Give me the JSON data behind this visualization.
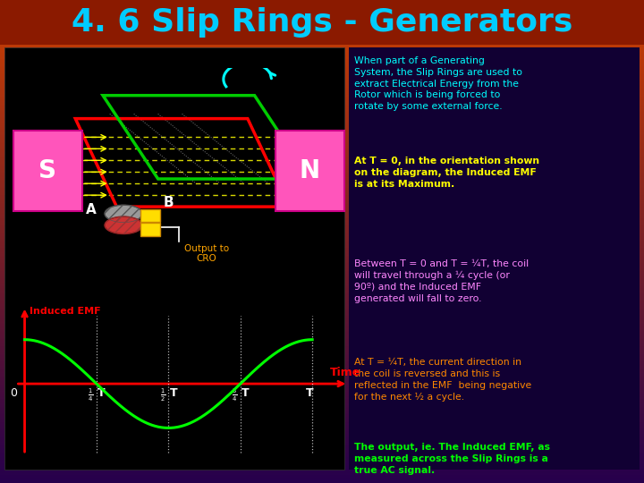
{
  "title": "4. 6 Slip Rings - Generators",
  "title_color": "#00CCFF",
  "title_fontsize": 26,
  "text_blocks": [
    {
      "text": "When part of a Generating\nSystem, the Slip Rings are used to\nextract Electrical Energy from the\nRotor which is being forced to\nrotate by some external force.",
      "color": "#00FFFF",
      "fontsize": 7.8,
      "bold": false
    },
    {
      "text": "At T = 0, in the orientation shown\non the diagram, the Induced EMF\nis at its Maximum.",
      "color": "#FFFF00",
      "fontsize": 7.8,
      "bold": true
    },
    {
      "text": "Between T = 0 and T = ¼T, the coil\nwill travel through a ¼ cycle (or\n90º) and the Induced EMF\ngenerated will fall to zero.",
      "color": "#FF88FF",
      "fontsize": 7.8,
      "bold": false
    },
    {
      "text": "At T = ¼T, the current direction in\nthe coil is reversed and this is\nreflected in the EMF  being negative\nfor the next ½ a cycle.",
      "color": "#FF8800",
      "fontsize": 7.8,
      "bold": false
    },
    {
      "text": "The output, ie. The Induced EMF, as\nmeasured across the Slip Rings is a\ntrue AC signal.",
      "color": "#00FF00",
      "fontsize": 7.8,
      "bold": true
    }
  ],
  "sine_color": "#00FF00",
  "axis_color": "#FF0000",
  "graph_bg": "#000010",
  "emf_label": "Induced EMF",
  "time_label": "Time"
}
